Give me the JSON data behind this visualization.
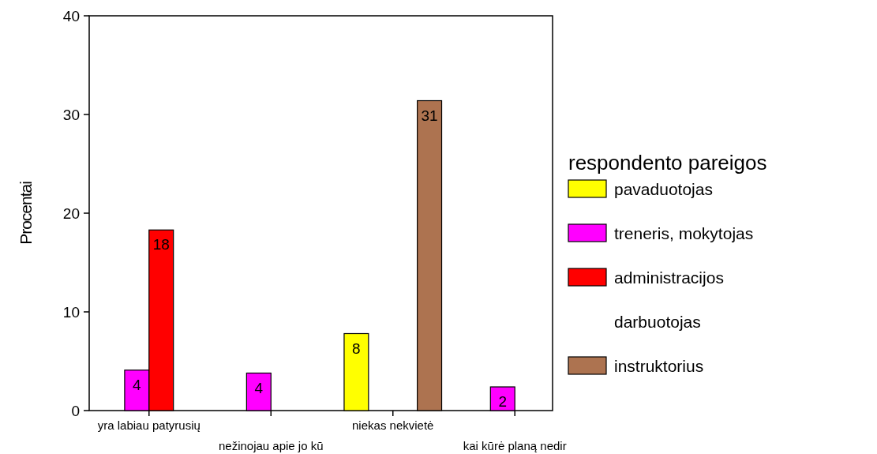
{
  "chart_data": {
    "type": "bar",
    "ylabel": "Procentai",
    "legend_title": "respondento pareigos",
    "legend": "right",
    "categories": [
      "yra labiau patyrusių",
      "nežinojau apie jo kū",
      "niekas nekvietė",
      "kai kūrė planą nedir"
    ],
    "ylim": [
      0,
      40
    ],
    "yticks": [
      0,
      10,
      20,
      30,
      40
    ],
    "grid": false,
    "series": [
      {
        "name": "pavaduotojas",
        "color": "#ffff00",
        "values": [
          0,
          0,
          7.8,
          0
        ],
        "value_labels": [
          null,
          null,
          "8",
          null
        ]
      },
      {
        "name": "treneris, mokytojas",
        "color": "#ff00ff",
        "values": [
          4.1,
          3.8,
          0,
          2.4
        ],
        "value_labels": [
          "4",
          "4",
          null,
          "2"
        ]
      },
      {
        "name": "administracijos darbuotojas",
        "color": "#ff0000",
        "values": [
          18.3,
          0,
          0,
          0
        ],
        "value_labels": [
          "18",
          null,
          null,
          null
        ]
      },
      {
        "name": "instruktorius",
        "color": "#ad7350",
        "values": [
          0,
          0,
          31.4,
          0
        ],
        "value_labels": [
          null,
          null,
          "31",
          null
        ]
      }
    ]
  }
}
